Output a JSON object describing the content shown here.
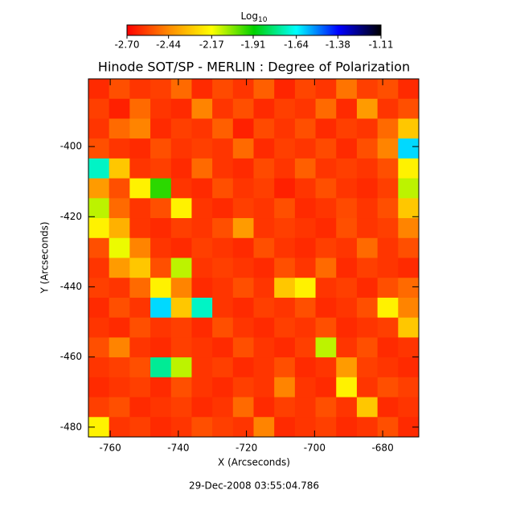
{
  "chart_data": {
    "type": "heatmap",
    "title": "Hinode SOT/SP - MERLIN : Degree of Polarization",
    "x_label": "X (Arcseconds)",
    "y_label": "Y (Arcseconds)",
    "footer": "29-Dec-2008 03:55:04.786",
    "xlim": [
      -766.4,
      -669.4
    ],
    "ylim": [
      -482.8,
      -380.7
    ],
    "xticks": [
      -760,
      -740,
      -720,
      -700,
      -680
    ],
    "yticks": [
      -400,
      -420,
      -440,
      -460,
      -480
    ],
    "colorbar": {
      "label": {
        "text": "Log",
        "subscript": "10"
      },
      "lim": [
        -2.7,
        -1.11
      ],
      "ticks": [
        {
          "value": -2.7,
          "label": "-2.70"
        },
        -2.44,
        -2.17,
        -1.91,
        -1.64,
        -1.38,
        -1.11
      ],
      "colormap": [
        "#ff0000",
        "#ff8c00",
        "#ffff00",
        "#00d000",
        "#00ffff",
        "#0000ff",
        "#000000"
      ]
    },
    "z": [
      [
        -2.62,
        -2.55,
        -2.6,
        -2.58,
        -2.5,
        -2.62,
        -2.56,
        -2.6,
        -2.52,
        -2.63,
        -2.57,
        -2.6,
        -2.48,
        -2.58,
        -2.55,
        -2.62
      ],
      [
        -2.58,
        -2.64,
        -2.5,
        -2.6,
        -2.62,
        -2.45,
        -2.6,
        -2.55,
        -2.62,
        -2.58,
        -2.6,
        -2.5,
        -2.62,
        -2.4,
        -2.6,
        -2.55
      ],
      [
        -2.6,
        -2.5,
        -2.45,
        -2.62,
        -2.58,
        -2.6,
        -2.52,
        -2.64,
        -2.56,
        -2.6,
        -2.55,
        -2.62,
        -2.58,
        -2.6,
        -2.5,
        -2.3
      ],
      [
        -2.55,
        -2.6,
        -2.62,
        -2.55,
        -2.6,
        -2.58,
        -2.6,
        -2.5,
        -2.62,
        -2.58,
        -2.6,
        -2.56,
        -2.62,
        -2.55,
        -2.45,
        -1.6
      ],
      [
        -1.7,
        -2.3,
        -2.6,
        -2.58,
        -2.62,
        -2.5,
        -2.6,
        -2.62,
        -2.56,
        -2.6,
        -2.52,
        -2.6,
        -2.58,
        -2.6,
        -2.55,
        -2.2
      ],
      [
        -2.4,
        -2.55,
        -2.2,
        -1.95,
        -2.6,
        -2.62,
        -2.55,
        -2.6,
        -2.58,
        -2.64,
        -2.6,
        -2.55,
        -2.6,
        -2.62,
        -2.58,
        -2.1
      ],
      [
        -2.1,
        -2.5,
        -2.6,
        -2.55,
        -2.2,
        -2.6,
        -2.62,
        -2.58,
        -2.6,
        -2.55,
        -2.62,
        -2.6,
        -2.56,
        -2.6,
        -2.55,
        -2.3
      ],
      [
        -2.2,
        -2.35,
        -2.6,
        -2.62,
        -2.58,
        -2.6,
        -2.55,
        -2.4,
        -2.6,
        -2.58,
        -2.6,
        -2.62,
        -2.55,
        -2.6,
        -2.58,
        -2.45
      ],
      [
        -2.55,
        -2.15,
        -2.45,
        -2.6,
        -2.62,
        -2.58,
        -2.6,
        -2.62,
        -2.55,
        -2.6,
        -2.62,
        -2.58,
        -2.6,
        -2.5,
        -2.6,
        -2.55
      ],
      [
        -2.6,
        -2.4,
        -2.3,
        -2.55,
        -2.1,
        -2.6,
        -2.58,
        -2.6,
        -2.62,
        -2.55,
        -2.6,
        -2.5,
        -2.62,
        -2.58,
        -2.6,
        -2.62
      ],
      [
        -2.58,
        -2.6,
        -2.5,
        -2.2,
        -2.45,
        -2.62,
        -2.6,
        -2.55,
        -2.6,
        -2.3,
        -2.2,
        -2.6,
        -2.58,
        -2.62,
        -2.55,
        -2.5
      ],
      [
        -2.62,
        -2.55,
        -2.6,
        -1.6,
        -2.3,
        -1.7,
        -2.6,
        -2.62,
        -2.58,
        -2.6,
        -2.55,
        -2.62,
        -2.6,
        -2.55,
        -2.2,
        -2.45
      ],
      [
        -2.6,
        -2.62,
        -2.55,
        -2.6,
        -2.58,
        -2.62,
        -2.55,
        -2.6,
        -2.62,
        -2.58,
        -2.6,
        -2.55,
        -2.62,
        -2.6,
        -2.58,
        -2.3
      ],
      [
        -2.55,
        -2.45,
        -2.6,
        -2.62,
        -2.58,
        -2.6,
        -2.62,
        -2.55,
        -2.6,
        -2.62,
        -2.58,
        -2.1,
        -2.6,
        -2.55,
        -2.62,
        -2.6
      ],
      [
        -2.6,
        -2.58,
        -2.55,
        -1.75,
        -2.1,
        -2.6,
        -2.58,
        -2.62,
        -2.6,
        -2.55,
        -2.62,
        -2.6,
        -2.4,
        -2.58,
        -2.6,
        -2.62
      ],
      [
        -2.62,
        -2.6,
        -2.58,
        -2.62,
        -2.55,
        -2.6,
        -2.62,
        -2.58,
        -2.6,
        -2.45,
        -2.6,
        -2.62,
        -2.2,
        -2.6,
        -2.55,
        -2.58
      ],
      [
        -2.58,
        -2.55,
        -2.62,
        -2.6,
        -2.58,
        -2.62,
        -2.6,
        -2.5,
        -2.62,
        -2.58,
        -2.6,
        -2.55,
        -2.6,
        -2.3,
        -2.62,
        -2.6
      ],
      [
        -2.2,
        -2.6,
        -2.58,
        -2.62,
        -2.6,
        -2.55,
        -2.58,
        -2.6,
        -2.45,
        -2.62,
        -2.6,
        -2.58,
        -2.62,
        -2.6,
        -2.55,
        -2.62
      ]
    ]
  }
}
